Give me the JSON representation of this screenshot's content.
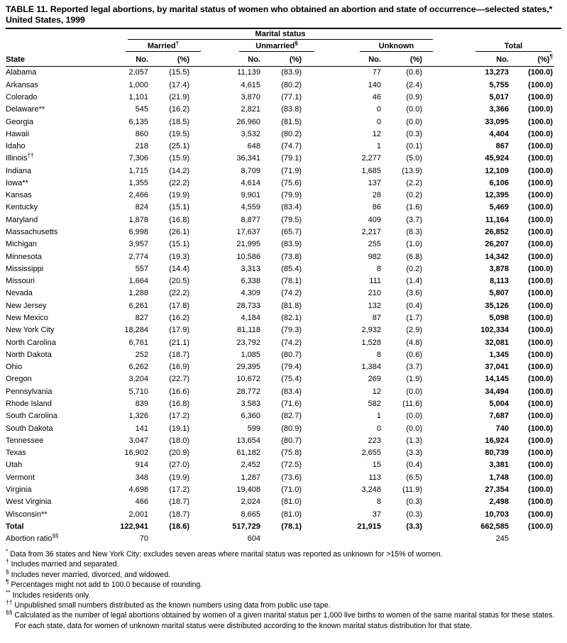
{
  "title": "TABLE 11. Reported legal abortions, by marital status of women who obtained an abortion and state of occurrence—selected states,* United States, 1999",
  "table": {
    "spanner": "Marital status",
    "col_state": "State",
    "groups": [
      {
        "label": "Married",
        "sup": "†"
      },
      {
        "label": "Unmarried",
        "sup": "§"
      },
      {
        "label": "Unknown",
        "sup": ""
      },
      {
        "label": "Total",
        "sup": ""
      }
    ],
    "sub": {
      "no": "No.",
      "pct": "(%)",
      "pct_total_sup": "¶"
    },
    "rows": [
      {
        "state": "Alabama",
        "mark": "",
        "v": [
          "2,057",
          "(15.5)",
          "11,139",
          "(83.9)",
          "77",
          "(0.6)",
          "13,273",
          "(100.0)"
        ]
      },
      {
        "state": "Arkansas",
        "mark": "",
        "v": [
          "1,000",
          "(17.4)",
          "4,615",
          "(80.2)",
          "140",
          "(2.4)",
          "5,755",
          "(100.0)"
        ]
      },
      {
        "state": "Colorado",
        "mark": "",
        "v": [
          "1,101",
          "(21.9)",
          "3,870",
          "(77.1)",
          "46",
          "(0.9)",
          "5,017",
          "(100.0)"
        ]
      },
      {
        "state": "Delaware**",
        "mark": "",
        "v": [
          "545",
          "(16.2)",
          "2,821",
          "(83.8)",
          "0",
          "(0.0)",
          "3,366",
          "(100.0)"
        ]
      },
      {
        "state": "Georgia",
        "mark": "",
        "v": [
          "6,135",
          "(18.5)",
          "26,960",
          "(81.5)",
          "0",
          "(0.0)",
          "33,095",
          "(100.0)"
        ]
      },
      {
        "state": "Hawaii",
        "mark": "",
        "v": [
          "860",
          "(19.5)",
          "3,532",
          "(80.2)",
          "12",
          "(0.3)",
          "4,404",
          "(100.0)"
        ]
      },
      {
        "state": "Idaho",
        "mark": "",
        "v": [
          "218",
          "(25.1)",
          "648",
          "(74.7)",
          "1",
          "(0.1)",
          "867",
          "(100.0)"
        ]
      },
      {
        "state": "Illinois",
        "mark": "††",
        "v": [
          "7,306",
          "(15.9)",
          "36,341",
          "(79.1)",
          "2,277",
          "(5.0)",
          "45,924",
          "(100.0)"
        ]
      },
      {
        "state": "Indiana",
        "mark": "",
        "v": [
          "1,715",
          "(14.2)",
          "8,709",
          "(71.9)",
          "1,685",
          "(13.9)",
          "12,109",
          "(100.0)"
        ]
      },
      {
        "state": "Iowa**",
        "mark": "",
        "v": [
          "1,355",
          "(22.2)",
          "4,614",
          "(75.6)",
          "137",
          "(2.2)",
          "6,106",
          "(100.0)"
        ]
      },
      {
        "state": "Kansas",
        "mark": "",
        "v": [
          "2,466",
          "(19.9)",
          "9,901",
          "(79.9)",
          "28",
          "(0.2)",
          "12,395",
          "(100.0)"
        ]
      },
      {
        "state": "Kentucky",
        "mark": "",
        "v": [
          "824",
          "(15.1)",
          "4,559",
          "(83.4)",
          "86",
          "(1.6)",
          "5,469",
          "(100.0)"
        ]
      },
      {
        "state": "Maryland",
        "mark": "",
        "v": [
          "1,878",
          "(16.8)",
          "8,877",
          "(79.5)",
          "409",
          "(3.7)",
          "11,164",
          "(100.0)"
        ]
      },
      {
        "state": "Massachusetts",
        "mark": "",
        "v": [
          "6,998",
          "(26.1)",
          "17,637",
          "(65.7)",
          "2,217",
          "(8.3)",
          "26,852",
          "(100.0)"
        ]
      },
      {
        "state": "Michigan",
        "mark": "",
        "v": [
          "3,957",
          "(15.1)",
          "21,995",
          "(83.9)",
          "255",
          "(1.0)",
          "26,207",
          "(100.0)"
        ]
      },
      {
        "state": "Minnesota",
        "mark": "",
        "v": [
          "2,774",
          "(19.3)",
          "10,586",
          "(73.8)",
          "982",
          "(6.8)",
          "14,342",
          "(100.0)"
        ]
      },
      {
        "state": "Mississippi",
        "mark": "",
        "v": [
          "557",
          "(14.4)",
          "3,313",
          "(85.4)",
          "8",
          "(0.2)",
          "3,878",
          "(100.0)"
        ]
      },
      {
        "state": "Missouri",
        "mark": "",
        "v": [
          "1,664",
          "(20.5)",
          "6,338",
          "(78.1)",
          "111",
          "(1.4)",
          "8,113",
          "(100.0)"
        ]
      },
      {
        "state": "Nevada",
        "mark": "",
        "v": [
          "1,288",
          "(22.2)",
          "4,309",
          "(74.2)",
          "210",
          "(3.6)",
          "5,807",
          "(100.0)"
        ]
      },
      {
        "state": "New Jersey",
        "mark": "",
        "v": [
          "6,261",
          "(17.8)",
          "28,733",
          "(81.8)",
          "132",
          "(0.4)",
          "35,126",
          "(100.0)"
        ]
      },
      {
        "state": "New Mexico",
        "mark": "",
        "v": [
          "827",
          "(16.2)",
          "4,184",
          "(82.1)",
          "87",
          "(1.7)",
          "5,098",
          "(100.0)"
        ]
      },
      {
        "state": "New York City",
        "mark": "",
        "v": [
          "18,284",
          "(17.9)",
          "81,118",
          "(79.3)",
          "2,932",
          "(2.9)",
          "102,334",
          "(100.0)"
        ]
      },
      {
        "state": "North Carolina",
        "mark": "",
        "v": [
          "6,761",
          "(21.1)",
          "23,792",
          "(74.2)",
          "1,528",
          "(4.8)",
          "32,081",
          "(100.0)"
        ]
      },
      {
        "state": "North Dakota",
        "mark": "",
        "v": [
          "252",
          "(18.7)",
          "1,085",
          "(80.7)",
          "8",
          "(0.6)",
          "1,345",
          "(100.0)"
        ]
      },
      {
        "state": "Ohio",
        "mark": "",
        "v": [
          "6,262",
          "(16.9)",
          "29,395",
          "(79.4)",
          "1,384",
          "(3.7)",
          "37,041",
          "(100.0)"
        ]
      },
      {
        "state": "Oregon",
        "mark": "",
        "v": [
          "3,204",
          "(22.7)",
          "10,672",
          "(75.4)",
          "269",
          "(1.9)",
          "14,145",
          "(100.0)"
        ]
      },
      {
        "state": "Pennsylvania",
        "mark": "",
        "v": [
          "5,710",
          "(16.6)",
          "28,772",
          "(83.4)",
          "12",
          "(0.0)",
          "34,494",
          "(100.0)"
        ]
      },
      {
        "state": "Rhode Island",
        "mark": "",
        "v": [
          "839",
          "(16.8)",
          "3,583",
          "(71.6)",
          "582",
          "(11.6)",
          "5,004",
          "(100.0)"
        ]
      },
      {
        "state": "South Carolina",
        "mark": "",
        "v": [
          "1,326",
          "(17.2)",
          "6,360",
          "(82.7)",
          "1",
          "(0.0)",
          "7,687",
          "(100.0)"
        ]
      },
      {
        "state": "South Dakota",
        "mark": "",
        "v": [
          "141",
          "(19.1)",
          "599",
          "(80.9)",
          "0",
          "(0.0)",
          "740",
          "(100.0)"
        ]
      },
      {
        "state": "Tennessee",
        "mark": "",
        "v": [
          "3,047",
          "(18.0)",
          "13,654",
          "(80.7)",
          "223",
          "(1.3)",
          "16,924",
          "(100.0)"
        ]
      },
      {
        "state": "Texas",
        "mark": "",
        "v": [
          "16,902",
          "(20.9)",
          "61,182",
          "(75.8)",
          "2,655",
          "(3.3)",
          "80,739",
          "(100.0)"
        ]
      },
      {
        "state": "Utah",
        "mark": "",
        "v": [
          "914",
          "(27.0)",
          "2,452",
          "(72.5)",
          "15",
          "(0.4)",
          "3,381",
          "(100.0)"
        ]
      },
      {
        "state": "Vermont",
        "mark": "",
        "v": [
          "348",
          "(19.9)",
          "1,287",
          "(73.6)",
          "113",
          "(6.5)",
          "1,748",
          "(100.0)"
        ]
      },
      {
        "state": "Virginia",
        "mark": "",
        "v": [
          "4,698",
          "(17.2)",
          "19,408",
          "(71.0)",
          "3,248",
          "(11.9)",
          "27,354",
          "(100.0)"
        ]
      },
      {
        "state": "West Virginia",
        "mark": "",
        "v": [
          "466",
          "(18.7)",
          "2,024",
          "(81.0)",
          "8",
          "(0.3)",
          "2,498",
          "(100.0)"
        ]
      },
      {
        "state": "Wisconsin**",
        "mark": "",
        "v": [
          "2,001",
          "(18.7)",
          "8,665",
          "(81.0)",
          "37",
          "(0.3)",
          "10,703",
          "(100.0)"
        ]
      },
      {
        "state": "Total",
        "mark": "",
        "bold": true,
        "v": [
          "122,941",
          "(18.6)",
          "517,729",
          "(78.1)",
          "21,915",
          "(3.3)",
          "662,585",
          "(100.0)"
        ]
      },
      {
        "state": "Abortion ratio",
        "mark": "§§",
        "nobold": true,
        "v": [
          "70",
          "",
          "604",
          "",
          "",
          "",
          "245",
          ""
        ]
      }
    ]
  },
  "footnotes": [
    {
      "mark": "*",
      "text": "Data from 36 states and New York City; excludes seven areas where marital status was reported as unknown for >15% of women."
    },
    {
      "mark": "†",
      "text": "Includes married and separated."
    },
    {
      "mark": "§",
      "text": "Includes never married, divorced, and widowed."
    },
    {
      "mark": "¶",
      "text": "Percentages might not add to 100.0 because of rounding."
    },
    {
      "mark": "**",
      "text": "Includes residents only."
    },
    {
      "mark": "††",
      "text": "Unpublished small numbers distributed as the known numbers using data from public use tape."
    },
    {
      "mark": "§§",
      "text": "Calculated as the number of legal abortions obtained by women of a given marital status per 1,000 live births to women of the same marital status for these states. For each state, data for women of unknown marital status were distributed according to the known marital status distribution for that state."
    }
  ]
}
